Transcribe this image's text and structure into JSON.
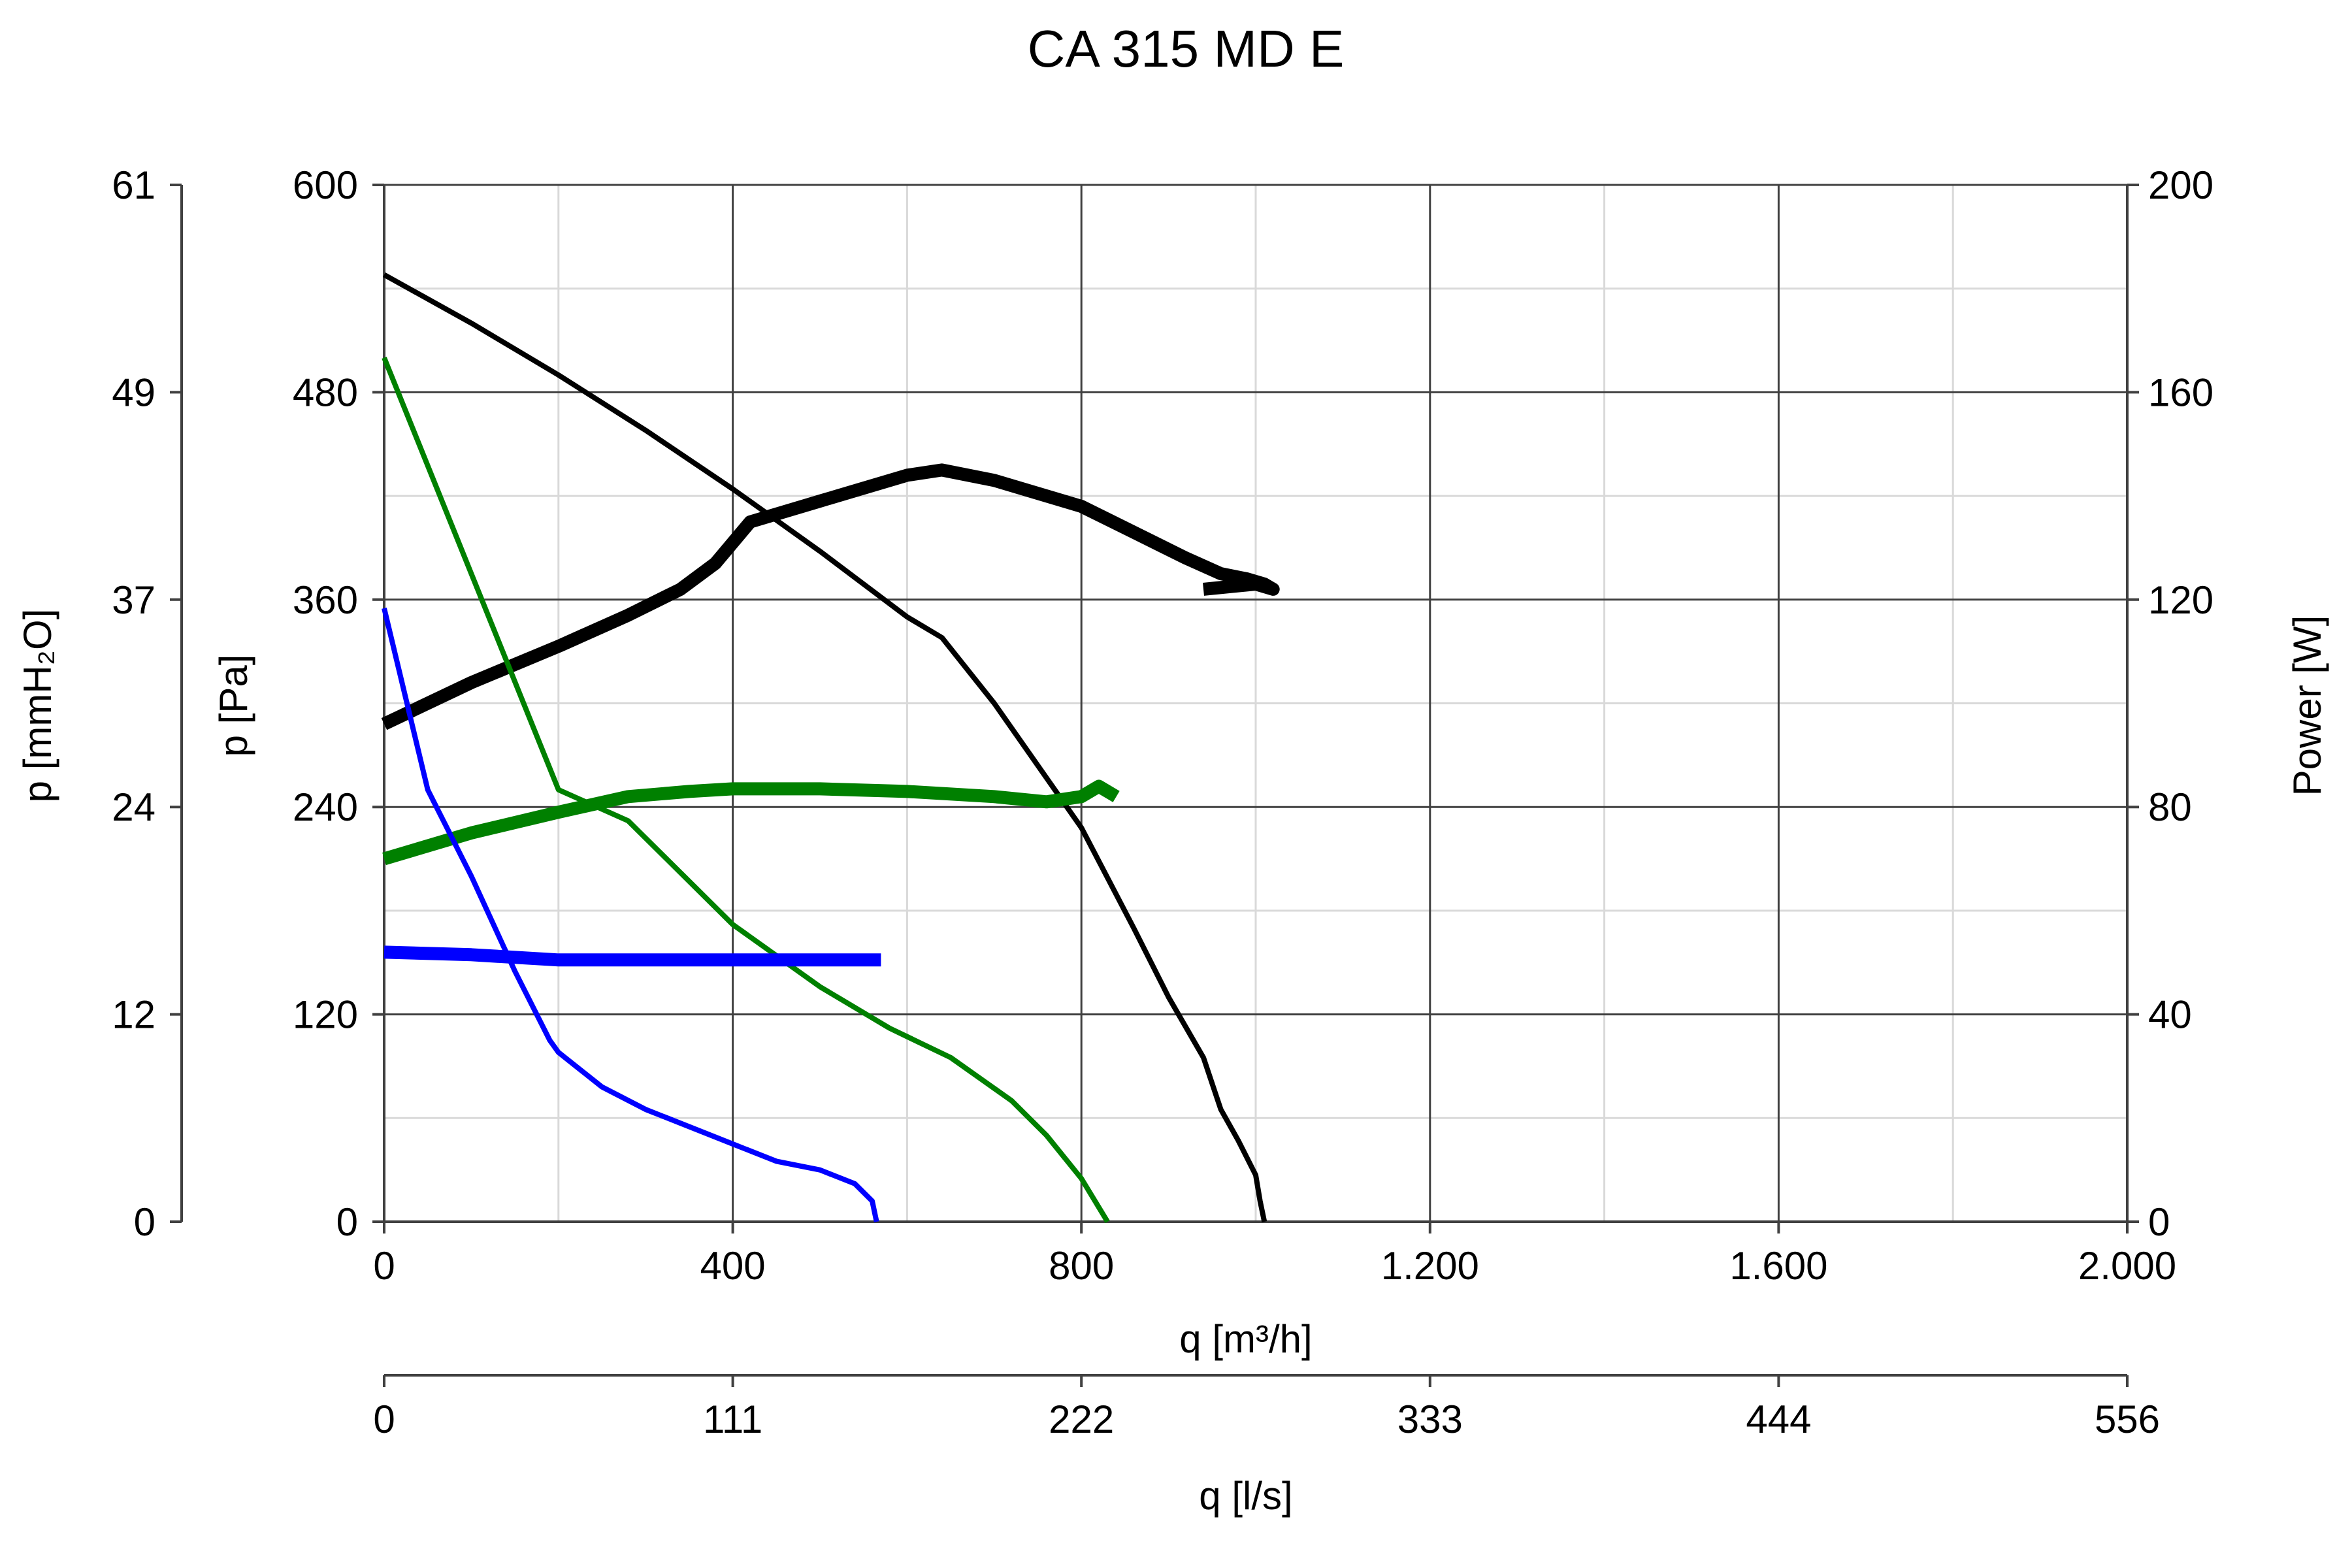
{
  "chart_data": {
    "type": "line",
    "title": "CA 315 MD E",
    "x_axis": {
      "label": "q [m³/h]",
      "range": [
        0,
        2000
      ],
      "ticks": [
        0,
        400,
        800,
        1200,
        1600,
        2000
      ],
      "tick_labels": [
        "0",
        "400",
        "800",
        "1.200",
        "1.600",
        "2.000"
      ],
      "minor_step": 200
    },
    "x2_axis": {
      "label": "q [l/s]",
      "tick_labels": [
        "0",
        "111",
        "222",
        "333",
        "444",
        "556"
      ]
    },
    "y_axis": {
      "label": "p [Pa]",
      "range": [
        0,
        600
      ],
      "ticks": [
        0,
        120,
        240,
        360,
        480,
        600
      ],
      "tick_labels": [
        "0",
        "120",
        "240",
        "360",
        "480",
        "600"
      ],
      "minor_step": 60
    },
    "y_mm_axis": {
      "label": "p [mmH₂O]",
      "tick_labels": [
        "0",
        "12",
        "24",
        "37",
        "49",
        "61"
      ]
    },
    "y2_axis": {
      "label": "Power [W]",
      "range": [
        0,
        200
      ],
      "ticks": [
        0,
        40,
        80,
        120,
        160,
        200
      ],
      "tick_labels": [
        "0",
        "40",
        "80",
        "120",
        "160",
        "200"
      ]
    },
    "grid": true,
    "colors": {
      "high": "#000000",
      "medium": "#008000",
      "low": "#0000ff",
      "grid_major": "#404040",
      "grid_minor": "#d9d9d9"
    },
    "series": [
      {
        "axis": "pressure",
        "color": "#000000",
        "width": "thin",
        "x": [
          0,
          100,
          200,
          300,
          400,
          500,
          600,
          640,
          700,
          800,
          860,
          900,
          940,
          960,
          980,
          1000,
          1005,
          1010
        ],
        "y": [
          548,
          520,
          490,
          458,
          424,
          388,
          350,
          338,
          300,
          228,
          170,
          130,
          95,
          65,
          47,
          27,
          12,
          0
        ]
      },
      {
        "axis": "power",
        "color": "#000000",
        "width": "thick",
        "x": [
          0,
          100,
          200,
          280,
          340,
          380,
          420,
          500,
          600,
          640,
          700,
          800,
          860,
          920,
          960,
          990,
          1010,
          1020,
          1000,
          940
        ],
        "y": [
          96,
          104,
          111,
          117,
          122,
          127,
          135,
          139,
          144,
          145,
          143,
          138,
          133,
          128,
          125,
          124,
          123,
          122,
          123,
          122
        ]
      },
      {
        "axis": "pressure",
        "color": "#008000",
        "width": "thin",
        "x": [
          0,
          100,
          200,
          280,
          400,
          500,
          580,
          650,
          720,
          760,
          800,
          830
        ],
        "y": [
          500,
          375,
          250,
          232,
          172,
          136,
          112,
          95,
          70,
          50,
          25,
          0
        ]
      },
      {
        "axis": "power",
        "color": "#008000",
        "width": "thick",
        "x": [
          0,
          100,
          200,
          280,
          350,
          400,
          450,
          500,
          600,
          700,
          760,
          800,
          820,
          840
        ],
        "y": [
          70,
          75,
          79,
          82,
          83,
          83.5,
          83.5,
          83.5,
          83,
          82,
          81,
          82,
          84,
          82
        ]
      },
      {
        "axis": "pressure",
        "color": "#0000ff",
        "width": "thin",
        "x": [
          0,
          50,
          100,
          150,
          190,
          200,
          250,
          300,
          350,
          400,
          450,
          500,
          540,
          560,
          565
        ],
        "y": [
          355,
          250,
          200,
          145,
          105,
          98,
          78,
          65,
          55,
          45,
          35,
          30,
          22,
          12,
          0
        ]
      },
      {
        "axis": "power",
        "color": "#0000ff",
        "width": "thick",
        "x": [
          0,
          100,
          200,
          300,
          400,
          500,
          570
        ],
        "y": [
          52,
          51.5,
          50.5,
          50.5,
          50.5,
          50.5,
          50.5
        ]
      }
    ]
  }
}
